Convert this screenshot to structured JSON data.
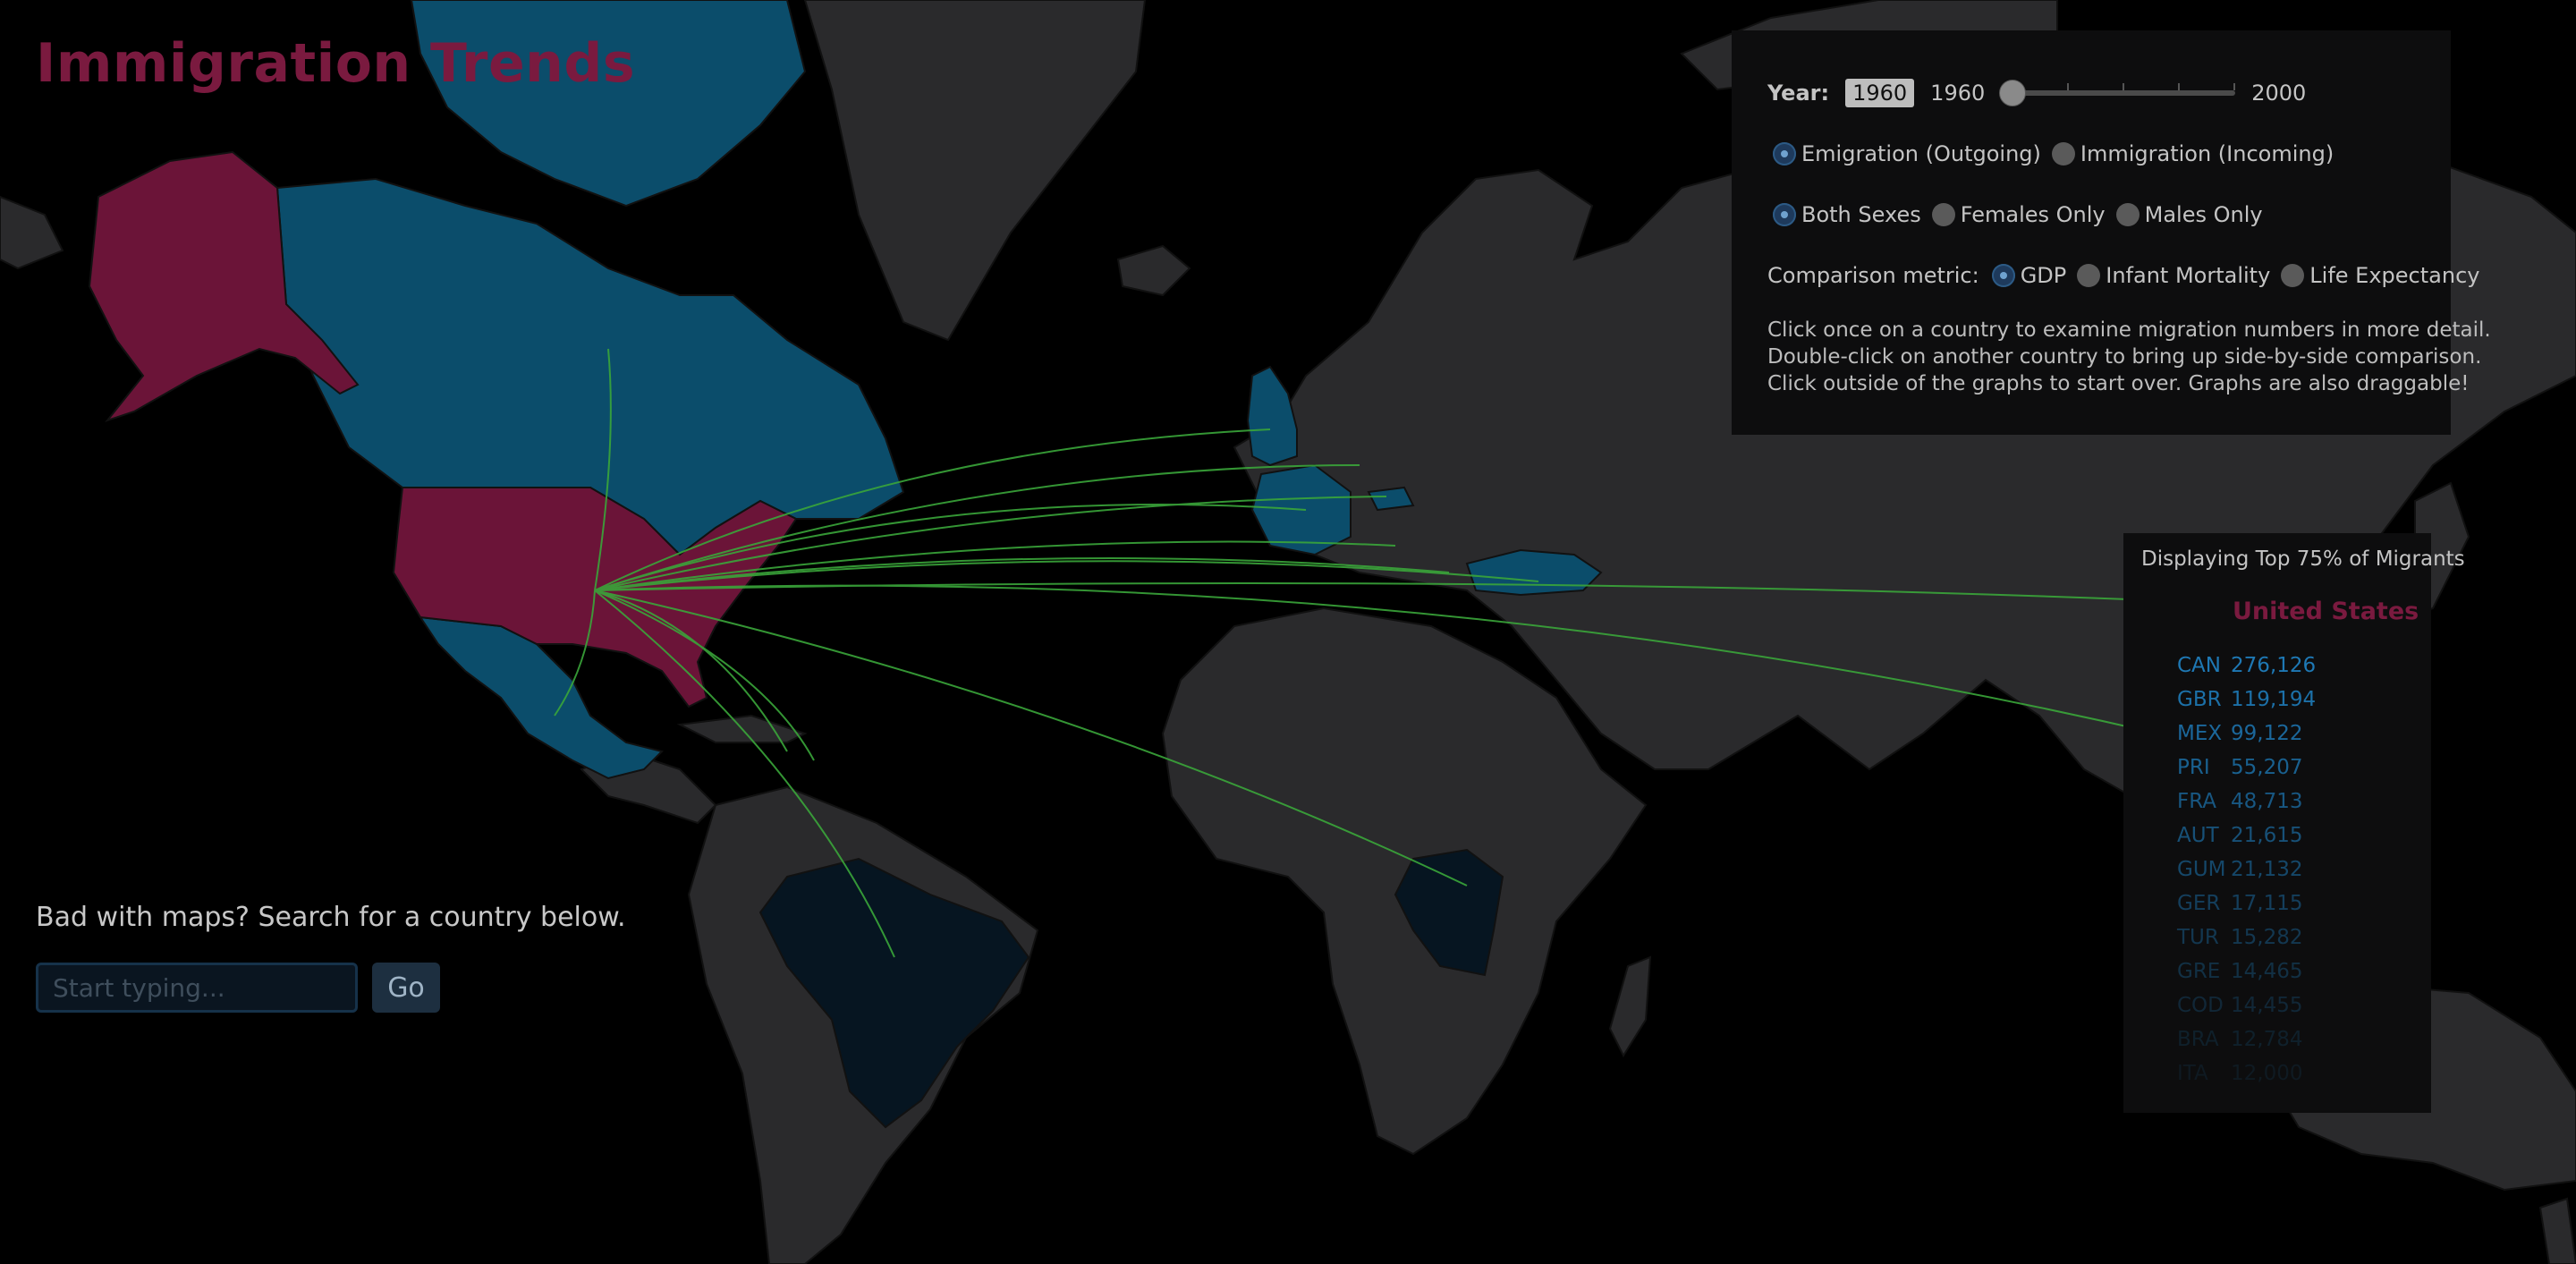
{
  "app": {
    "title": "Immigration Trends"
  },
  "controls": {
    "year_label": "Year:",
    "year_value": "1960",
    "slider_min": "1960",
    "slider_max": "2000",
    "slider_value": 1960,
    "direction_options": [
      {
        "label": "Emigration (Outgoing)",
        "selected": true
      },
      {
        "label": "Immigration (Incoming)",
        "selected": false
      }
    ],
    "sex_options": [
      {
        "label": "Both Sexes",
        "selected": true
      },
      {
        "label": "Females Only",
        "selected": false
      },
      {
        "label": "Males Only",
        "selected": false
      }
    ],
    "metric_label": "Comparison metric:",
    "metric_options": [
      {
        "label": "GDP",
        "selected": true
      },
      {
        "label": "Infant Mortality",
        "selected": false
      },
      {
        "label": "Life Expectancy",
        "selected": false
      }
    ],
    "instructions": [
      "Click once on a country to examine migration numbers in more detail.",
      "Double-click on another country to bring up side-by-side comparison.",
      "Click outside of the graphs to start over. Graphs are also draggable!"
    ]
  },
  "search": {
    "prompt": "Bad with maps? Search for a country below.",
    "placeholder": "Start typing...",
    "go_label": "Go"
  },
  "panel": {
    "header": "Displaying Top 75% of Migrants",
    "country": "United States",
    "destinations": [
      {
        "code": "CAN",
        "count": "276,126"
      },
      {
        "code": "GBR",
        "count": "119,194"
      },
      {
        "code": "MEX",
        "count": "99,122"
      },
      {
        "code": "PRI",
        "count": "55,207"
      },
      {
        "code": "FRA",
        "count": "48,713"
      },
      {
        "code": "AUT",
        "count": "21,615"
      },
      {
        "code": "GUM",
        "count": "21,132"
      },
      {
        "code": "GER",
        "count": "17,115"
      },
      {
        "code": "TUR",
        "count": "15,282"
      },
      {
        "code": "GRE",
        "count": "14,465"
      },
      {
        "code": "COD",
        "count": "14,455"
      },
      {
        "code": "BRA",
        "count": "12,784"
      },
      {
        "code": "ITA",
        "count": "12,000"
      }
    ]
  },
  "map": {
    "selected_country": "United States",
    "colors": {
      "ocean": "#000000",
      "land": "#2a2a2c",
      "selected": "#6b1438",
      "destination_strong": "#0b4d6b",
      "destination_weak": "#061521",
      "flow_line": "#3aa63a"
    },
    "highlighted": [
      {
        "code": "CAN",
        "level": "strong"
      },
      {
        "code": "MEX",
        "level": "strong"
      },
      {
        "code": "GBR",
        "level": "strong"
      },
      {
        "code": "FRA",
        "level": "strong"
      },
      {
        "code": "AUT",
        "level": "strong"
      },
      {
        "code": "TUR",
        "level": "strong"
      },
      {
        "code": "COD",
        "level": "weak"
      },
      {
        "code": "BRA",
        "level": "weak"
      }
    ]
  }
}
